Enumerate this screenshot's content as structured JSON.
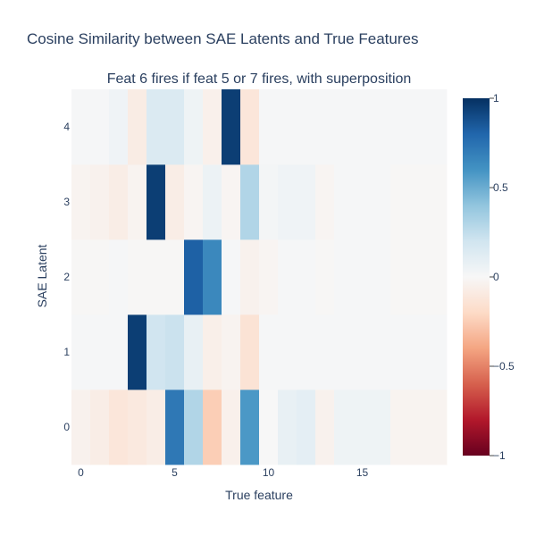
{
  "title": "Cosine Similarity between SAE Latents and True Features",
  "chart_data": {
    "type": "heatmap",
    "subtitle": "Feat 6 fires if feat 5 or 7 fires, with superposition",
    "xlabel": "True feature",
    "ylabel": "SAE Latent",
    "x": [
      0,
      1,
      2,
      3,
      4,
      5,
      6,
      7,
      8,
      9,
      10,
      11,
      12,
      13,
      14,
      15,
      16,
      17,
      18,
      19
    ],
    "y": [
      0,
      1,
      2,
      3,
      4
    ],
    "x_ticks": [
      0,
      5,
      10,
      15
    ],
    "y_ticks": [
      0,
      1,
      2,
      3,
      4
    ],
    "xlim": [
      -0.5,
      19.5
    ],
    "ylim": [
      -0.5,
      4.5
    ],
    "z": [
      [
        -0.04,
        -0.07,
        -0.12,
        -0.1,
        -0.07,
        0.72,
        0.3,
        -0.25,
        -0.05,
        0.58,
        0.0,
        0.08,
        0.1,
        -0.04,
        0.05,
        0.05,
        0.05,
        -0.03,
        -0.03,
        -0.03
      ],
      [
        0.01,
        0.01,
        0.01,
        0.95,
        0.2,
        0.22,
        0.08,
        -0.06,
        -0.03,
        -0.14,
        0.01,
        0.01,
        0.01,
        0.01,
        0.01,
        0.01,
        0.01,
        0.01,
        0.01,
        0.01
      ],
      [
        -0.01,
        -0.01,
        0.01,
        -0.01,
        -0.01,
        -0.01,
        0.82,
        0.65,
        0.01,
        -0.04,
        -0.02,
        0.01,
        0.01,
        -0.01,
        0.01,
        0.01,
        0.01,
        -0.01,
        -0.01,
        -0.01
      ],
      [
        -0.03,
        -0.04,
        -0.07,
        -0.03,
        0.95,
        -0.07,
        -0.02,
        0.06,
        -0.02,
        0.3,
        0.02,
        0.04,
        0.04,
        -0.02,
        0.01,
        0.01,
        0.01,
        -0.01,
        -0.01,
        -0.01
      ],
      [
        0.01,
        0.01,
        0.04,
        -0.08,
        0.15,
        0.15,
        0.05,
        -0.05,
        0.95,
        -0.12,
        0.01,
        0.01,
        0.01,
        0.01,
        0.01,
        0.01,
        0.01,
        0.01,
        0.01,
        0.01
      ]
    ],
    "colorscale": "RdBu",
    "zlim": [
      -1,
      1
    ],
    "colorbar_ticks": [
      -1,
      -0.5,
      0,
      0.5,
      1
    ],
    "colorbar_tick_labels": [
      "−1",
      "−0.5",
      "0",
      "0.5",
      "1"
    ],
    "colorbar_stops": [
      [
        0,
        "#67001f"
      ],
      [
        0.1,
        "#b2182b"
      ],
      [
        0.2,
        "#d6604d"
      ],
      [
        0.3,
        "#f4a582"
      ],
      [
        0.4,
        "#fddbc7"
      ],
      [
        0.5,
        "#f7f7f7"
      ],
      [
        0.6,
        "#d1e5f0"
      ],
      [
        0.7,
        "#92c5de"
      ],
      [
        0.8,
        "#4393c3"
      ],
      [
        0.9,
        "#2166ac"
      ],
      [
        1,
        "#053061"
      ]
    ]
  }
}
